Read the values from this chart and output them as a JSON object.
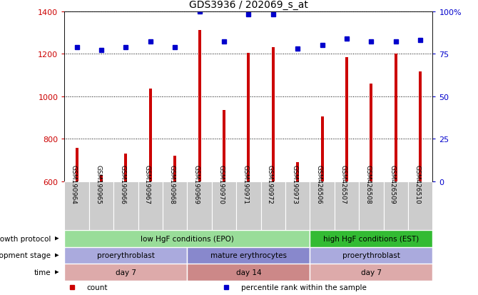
{
  "title": "GDS3936 / 202069_s_at",
  "samples": [
    "GSM190964",
    "GSM190965",
    "GSM190966",
    "GSM190967",
    "GSM190968",
    "GSM190969",
    "GSM190970",
    "GSM190971",
    "GSM190972",
    "GSM190973",
    "GSM426506",
    "GSM426507",
    "GSM426508",
    "GSM426509",
    "GSM426510"
  ],
  "counts": [
    757,
    630,
    730,
    1035,
    720,
    1310,
    935,
    1205,
    1230,
    690,
    905,
    1185,
    1060,
    1200,
    1115
  ],
  "percentiles": [
    79,
    77,
    79,
    82,
    79,
    100,
    82,
    98,
    98,
    78,
    80,
    84,
    82,
    82,
    83
  ],
  "ymin": 600,
  "ymax": 1400,
  "yticks": [
    600,
    800,
    1000,
    1200,
    1400
  ],
  "y2ticks": [
    0,
    25,
    50,
    75,
    100
  ],
  "y2labels": [
    "0",
    "25",
    "50",
    "75",
    "100%"
  ],
  "bar_color": "#cc0000",
  "dot_color": "#0000cc",
  "bar_width": 0.12,
  "grid_color": "#000000",
  "bg_color": "#ffffff",
  "plot_bg": "#ffffff",
  "xtick_cell_bg": "#cccccc",
  "annotation_rows": [
    {
      "label": "growth protocol",
      "segments": [
        {
          "text": "low HgF conditions (EPO)",
          "start": 0,
          "end": 10,
          "color": "#99dd99"
        },
        {
          "text": "high HgF conditions (EST)",
          "start": 10,
          "end": 15,
          "color": "#33bb33"
        }
      ]
    },
    {
      "label": "development stage",
      "segments": [
        {
          "text": "proerythroblast",
          "start": 0,
          "end": 5,
          "color": "#aaaadd"
        },
        {
          "text": "mature erythrocytes",
          "start": 5,
          "end": 10,
          "color": "#8888cc"
        },
        {
          "text": "proerythroblast",
          "start": 10,
          "end": 15,
          "color": "#aaaadd"
        }
      ]
    },
    {
      "label": "time",
      "segments": [
        {
          "text": "day 7",
          "start": 0,
          "end": 5,
          "color": "#ddaaaa"
        },
        {
          "text": "day 14",
          "start": 5,
          "end": 10,
          "color": "#cc8888"
        },
        {
          "text": "day 7",
          "start": 10,
          "end": 15,
          "color": "#ddaaaa"
        }
      ]
    }
  ],
  "legend": [
    {
      "color": "#cc0000",
      "label": "count"
    },
    {
      "color": "#0000cc",
      "label": "percentile rank within the sample"
    }
  ]
}
